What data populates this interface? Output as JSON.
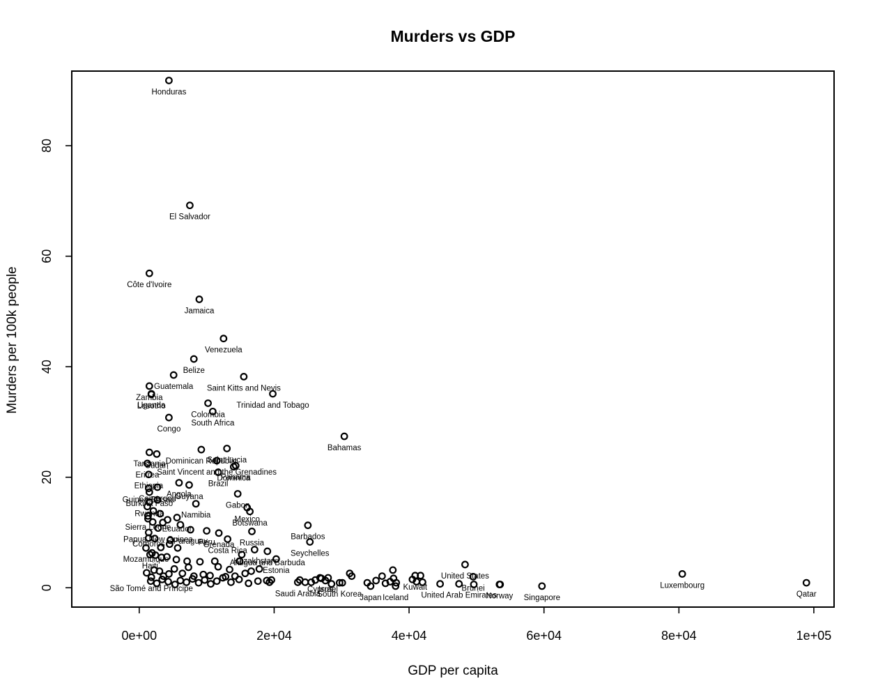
{
  "chart_data": {
    "type": "scatter",
    "title": "Murders vs GDP",
    "xlabel": "GDP per capita",
    "ylabel": "Murders per 100k people",
    "xlim": [
      -10000,
      103000
    ],
    "ylim": [
      -3.5,
      93.5
    ],
    "x_ticks": [
      {
        "value": 0,
        "label": "0e+00"
      },
      {
        "value": 20000,
        "label": "2e+04"
      },
      {
        "value": 40000,
        "label": "4e+04"
      },
      {
        "value": 60000,
        "label": "6e+04"
      },
      {
        "value": 80000,
        "label": "8e+04"
      },
      {
        "value": 100000,
        "label": "1e+05"
      }
    ],
    "y_ticks": [
      {
        "value": 0,
        "label": "0"
      },
      {
        "value": 20,
        "label": "20"
      },
      {
        "value": 40,
        "label": "40"
      },
      {
        "value": 60,
        "label": "60"
      },
      {
        "value": 80,
        "label": "80"
      }
    ],
    "grid": false,
    "labeled_points": [
      {
        "name": "Honduras",
        "x": 4400,
        "y": 91.8
      },
      {
        "name": "El Salvador",
        "x": 7500,
        "y": 69.2
      },
      {
        "name": "Côte d'Ivoire",
        "x": 1500,
        "y": 56.9
      },
      {
        "name": "Jamaica",
        "x": 8900,
        "y": 52.2
      },
      {
        "name": "Venezuela",
        "x": 12500,
        "y": 45.1
      },
      {
        "name": "Belize",
        "x": 8100,
        "y": 41.4
      },
      {
        "name": "Guatemala",
        "x": 5100,
        "y": 38.5
      },
      {
        "name": "Saint Kitts and Nevis",
        "x": 15500,
        "y": 38.2
      },
      {
        "name": "Zambia",
        "x": 1500,
        "y": 36.5
      },
      {
        "name": "Uganda",
        "x": 1800,
        "y": 35.1
      },
      {
        "name": "Trinidad and Tobago",
        "x": 19800,
        "y": 35.1
      },
      {
        "name": "Lesotho",
        "x": 1800,
        "y": 35.0
      },
      {
        "name": "Colombia",
        "x": 10200,
        "y": 33.4
      },
      {
        "name": "South Africa",
        "x": 10900,
        "y": 31.9
      },
      {
        "name": "Congo",
        "x": 4400,
        "y": 30.8
      },
      {
        "name": "Bahamas",
        "x": 30400,
        "y": 27.4
      },
      {
        "name": "Dominican Republic",
        "x": 9200,
        "y": 25.0
      },
      {
        "name": "Saint Lucia",
        "x": 13000,
        "y": 25.2
      },
      {
        "name": "Tanzania",
        "x": 1500,
        "y": 24.5
      },
      {
        "name": "Sudan",
        "x": 2600,
        "y": 24.2
      },
      {
        "name": "Saint Vincent and the Grenadines",
        "x": 11500,
        "y": 23.0
      },
      {
        "name": "Eritrea",
        "x": 1200,
        "y": 22.5
      },
      {
        "name": "Ethiopia",
        "x": 1400,
        "y": 20.5
      },
      {
        "name": "Dominica",
        "x": 14000,
        "y": 21.9
      },
      {
        "name": "Panama",
        "x": 14300,
        "y": 22.1
      },
      {
        "name": "Brazil",
        "x": 11700,
        "y": 20.9
      },
      {
        "name": "Guinea-Bissau",
        "x": 1400,
        "y": 18.0
      },
      {
        "name": "Cameroon",
        "x": 2700,
        "y": 18.2
      },
      {
        "name": "Angola",
        "x": 5900,
        "y": 19.0
      },
      {
        "name": "Guyana",
        "x": 7400,
        "y": 18.6
      },
      {
        "name": "Burkina Faso",
        "x": 1500,
        "y": 17.3
      },
      {
        "name": "Namibia",
        "x": 8400,
        "y": 15.2
      },
      {
        "name": "Rwanda",
        "x": 1500,
        "y": 15.5
      },
      {
        "name": "Mexico",
        "x": 16000,
        "y": 14.5
      },
      {
        "name": "Ecuador",
        "x": 5600,
        "y": 12.7
      },
      {
        "name": "Sierra Leone",
        "x": 1300,
        "y": 13.0
      },
      {
        "name": "Botswana",
        "x": 16400,
        "y": 13.8
      },
      {
        "name": "Gabon",
        "x": 14600,
        "y": 17.0
      },
      {
        "name": "Papua New Guinea",
        "x": 2800,
        "y": 10.8
      },
      {
        "name": "Paraguay",
        "x": 7600,
        "y": 10.5
      },
      {
        "name": "Barbados",
        "x": 25000,
        "y": 11.3
      },
      {
        "name": "Grenada",
        "x": 11800,
        "y": 9.9
      },
      {
        "name": "Comoros",
        "x": 1400,
        "y": 10.0
      },
      {
        "name": "Peru",
        "x": 10000,
        "y": 10.3
      },
      {
        "name": "Costa Rica",
        "x": 13100,
        "y": 8.8
      },
      {
        "name": "Russia",
        "x": 16700,
        "y": 10.2
      },
      {
        "name": "Seychelles",
        "x": 25300,
        "y": 8.3
      },
      {
        "name": "Kazakhstan",
        "x": 17100,
        "y": 6.9
      },
      {
        "name": "Mozambique",
        "x": 1000,
        "y": 7.2
      },
      {
        "name": "Antigua and Barbuda",
        "x": 19000,
        "y": 6.6
      },
      {
        "name": "Haiti",
        "x": 1600,
        "y": 6.0
      },
      {
        "name": "Estonia",
        "x": 20300,
        "y": 5.2
      },
      {
        "name": "United States",
        "x": 48300,
        "y": 4.2
      },
      {
        "name": "Luxembourg",
        "x": 80500,
        "y": 2.5
      },
      {
        "name": "Qatar",
        "x": 98900,
        "y": 0.9
      },
      {
        "name": "Singapore",
        "x": 59700,
        "y": 0.3
      },
      {
        "name": "Norway",
        "x": 53400,
        "y": 0.6
      },
      {
        "name": "Kuwait",
        "x": 40900,
        "y": 2.2
      },
      {
        "name": "South Korea",
        "x": 29700,
        "y": 0.9
      },
      {
        "name": "Japan",
        "x": 34300,
        "y": 0.3
      },
      {
        "name": "Iceland",
        "x": 38000,
        "y": 0.3
      },
      {
        "name": "Israel",
        "x": 28000,
        "y": 1.8
      },
      {
        "name": "Saudi Arabia",
        "x": 23500,
        "y": 1.0
      },
      {
        "name": "São Tomé and Príncipe",
        "x": 1800,
        "y": 1.9
      },
      {
        "name": "United Arab Emirates",
        "x": 47400,
        "y": 0.7
      },
      {
        "name": "Brunei",
        "x": 49500,
        "y": 2.0
      },
      {
        "name": "Cyprus",
        "x": 26800,
        "y": 1.8
      }
    ],
    "points": [
      {
        "x": 1200,
        "y": 14.7
      },
      {
        "x": 2100,
        "y": 13.9
      },
      {
        "x": 2700,
        "y": 15.9
      },
      {
        "x": 3100,
        "y": 13.4
      },
      {
        "x": 1300,
        "y": 12.5
      },
      {
        "x": 2000,
        "y": 11.9
      },
      {
        "x": 3500,
        "y": 11.8
      },
      {
        "x": 4200,
        "y": 12.3
      },
      {
        "x": 6100,
        "y": 11.4
      },
      {
        "x": 1400,
        "y": 9.0
      },
      {
        "x": 2300,
        "y": 8.9
      },
      {
        "x": 4600,
        "y": 8.6
      },
      {
        "x": 4500,
        "y": 7.9
      },
      {
        "x": 3200,
        "y": 7.3
      },
      {
        "x": 5700,
        "y": 7.2
      },
      {
        "x": 1900,
        "y": 6.3
      },
      {
        "x": 2400,
        "y": 5.9
      },
      {
        "x": 3300,
        "y": 5.5
      },
      {
        "x": 4100,
        "y": 5.6
      },
      {
        "x": 5500,
        "y": 5.1
      },
      {
        "x": 7100,
        "y": 4.8
      },
      {
        "x": 9000,
        "y": 4.7
      },
      {
        "x": 11200,
        "y": 4.8
      },
      {
        "x": 14900,
        "y": 4.8
      },
      {
        "x": 15200,
        "y": 6.0
      },
      {
        "x": 1100,
        "y": 2.7
      },
      {
        "x": 2200,
        "y": 3.2
      },
      {
        "x": 3000,
        "y": 3.0
      },
      {
        "x": 3600,
        "y": 2.1
      },
      {
        "x": 4400,
        "y": 2.5
      },
      {
        "x": 5200,
        "y": 3.4
      },
      {
        "x": 6400,
        "y": 2.6
      },
      {
        "x": 7300,
        "y": 3.7
      },
      {
        "x": 8100,
        "y": 2.1
      },
      {
        "x": 9500,
        "y": 2.4
      },
      {
        "x": 10500,
        "y": 2.2
      },
      {
        "x": 11700,
        "y": 3.8
      },
      {
        "x": 12800,
        "y": 2.0
      },
      {
        "x": 13400,
        "y": 3.3
      },
      {
        "x": 14200,
        "y": 2.1
      },
      {
        "x": 15700,
        "y": 2.6
      },
      {
        "x": 16600,
        "y": 3.0
      },
      {
        "x": 17800,
        "y": 3.4
      },
      {
        "x": 19600,
        "y": 1.4
      },
      {
        "x": 1700,
        "y": 1.2
      },
      {
        "x": 2600,
        "y": 0.8
      },
      {
        "x": 3400,
        "y": 1.5
      },
      {
        "x": 4300,
        "y": 1.1
      },
      {
        "x": 5300,
        "y": 0.6
      },
      {
        "x": 6100,
        "y": 1.3
      },
      {
        "x": 7000,
        "y": 1.0
      },
      {
        "x": 7900,
        "y": 1.6
      },
      {
        "x": 8800,
        "y": 0.9
      },
      {
        "x": 9700,
        "y": 1.4
      },
      {
        "x": 10600,
        "y": 0.7
      },
      {
        "x": 11500,
        "y": 1.2
      },
      {
        "x": 12400,
        "y": 1.8
      },
      {
        "x": 13600,
        "y": 1.0
      },
      {
        "x": 14800,
        "y": 1.5
      },
      {
        "x": 16200,
        "y": 0.8
      },
      {
        "x": 17600,
        "y": 1.2
      },
      {
        "x": 18900,
        "y": 1.3
      },
      {
        "x": 19300,
        "y": 1.0
      },
      {
        "x": 23800,
        "y": 1.4
      },
      {
        "x": 24600,
        "y": 1.0
      },
      {
        "x": 25500,
        "y": 1.0
      },
      {
        "x": 26100,
        "y": 1.4
      },
      {
        "x": 27000,
        "y": 1.7
      },
      {
        "x": 27600,
        "y": 1.3
      },
      {
        "x": 28500,
        "y": 0.7
      },
      {
        "x": 30100,
        "y": 0.9
      },
      {
        "x": 31200,
        "y": 2.6
      },
      {
        "x": 31500,
        "y": 2.1
      },
      {
        "x": 33800,
        "y": 0.9
      },
      {
        "x": 35100,
        "y": 1.3
      },
      {
        "x": 36000,
        "y": 2.1
      },
      {
        "x": 36500,
        "y": 0.8
      },
      {
        "x": 37200,
        "y": 1.1
      },
      {
        "x": 37600,
        "y": 3.2
      },
      {
        "x": 37700,
        "y": 1.7
      },
      {
        "x": 38100,
        "y": 0.9
      },
      {
        "x": 40500,
        "y": 1.5
      },
      {
        "x": 41100,
        "y": 1.1
      },
      {
        "x": 41700,
        "y": 2.2
      },
      {
        "x": 42000,
        "y": 1.0
      },
      {
        "x": 44600,
        "y": 0.7
      },
      {
        "x": 49600,
        "y": 0.6
      },
      {
        "x": 53500,
        "y": 0.6
      }
    ]
  }
}
